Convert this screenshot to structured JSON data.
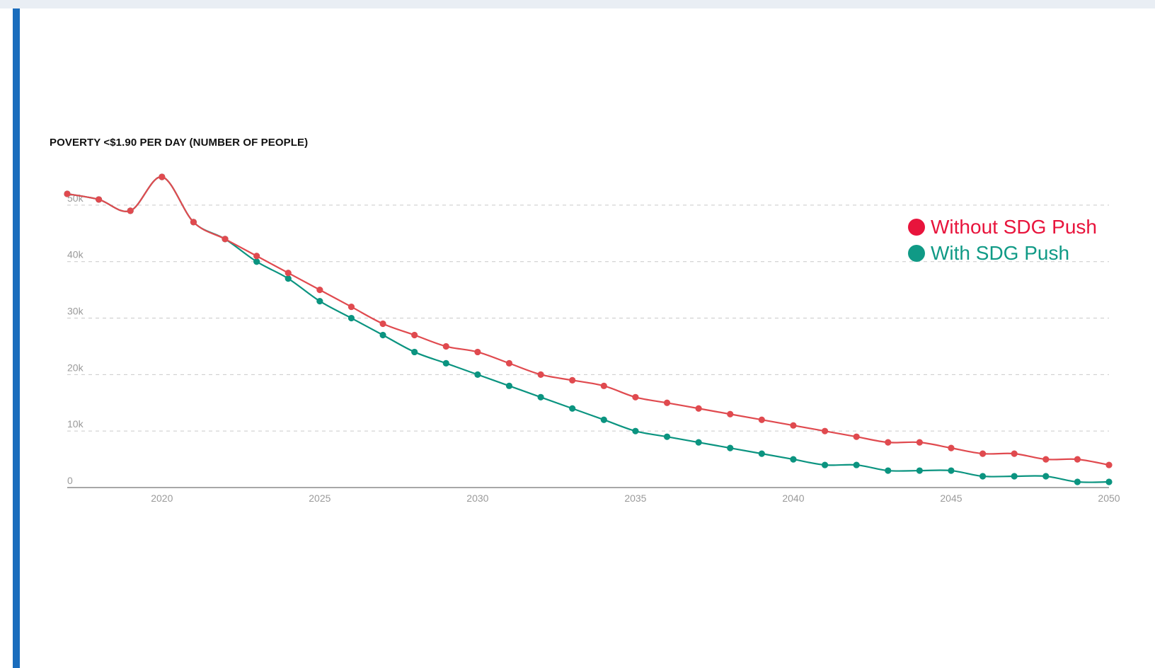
{
  "chart_data": {
    "type": "line",
    "title": "POVERTY <$1.90 PER DAY (NUMBER OF PEOPLE)",
    "xlim": [
      2017,
      2050
    ],
    "ylim": [
      0,
      55000
    ],
    "x_ticks": [
      2020,
      2025,
      2030,
      2035,
      2040,
      2045,
      2050
    ],
    "y_ticks": [
      {
        "value": 0,
        "label": "0"
      },
      {
        "value": 10000,
        "label": "10k"
      },
      {
        "value": 20000,
        "label": "20k"
      },
      {
        "value": 30000,
        "label": "30k"
      },
      {
        "value": 40000,
        "label": "40k"
      },
      {
        "value": 50000,
        "label": "50k"
      }
    ],
    "grid": true,
    "legend_position": "top-right",
    "x": [
      2017,
      2018,
      2019,
      2020,
      2021,
      2022,
      2023,
      2024,
      2025,
      2026,
      2027,
      2028,
      2029,
      2030,
      2031,
      2032,
      2033,
      2034,
      2035,
      2036,
      2037,
      2038,
      2039,
      2040,
      2041,
      2042,
      2043,
      2044,
      2045,
      2046,
      2047,
      2048,
      2049,
      2050
    ],
    "series": [
      {
        "name": "Without SDG Push",
        "color": "#e04a4f",
        "legend_color": "#e8143c",
        "values": [
          52000,
          51000,
          49000,
          55000,
          47000,
          44000,
          41000,
          38000,
          35000,
          32000,
          29000,
          27000,
          25000,
          24000,
          22000,
          20000,
          19000,
          18000,
          16000,
          15000,
          14000,
          13000,
          12000,
          11000,
          10000,
          9000,
          8000,
          8000,
          7000,
          6000,
          6000,
          5000,
          5000,
          4000
        ]
      },
      {
        "name": "With SDG Push",
        "color": "#0b9480",
        "legend_color": "#109a86",
        "values": [
          52000,
          51000,
          49000,
          55000,
          47000,
          44000,
          40000,
          37000,
          33000,
          30000,
          27000,
          24000,
          22000,
          20000,
          18000,
          16000,
          14000,
          12000,
          10000,
          9000,
          8000,
          7000,
          6000,
          5000,
          4000,
          4000,
          3000,
          3000,
          3000,
          2000,
          2000,
          2000,
          1000,
          1000
        ]
      }
    ]
  }
}
